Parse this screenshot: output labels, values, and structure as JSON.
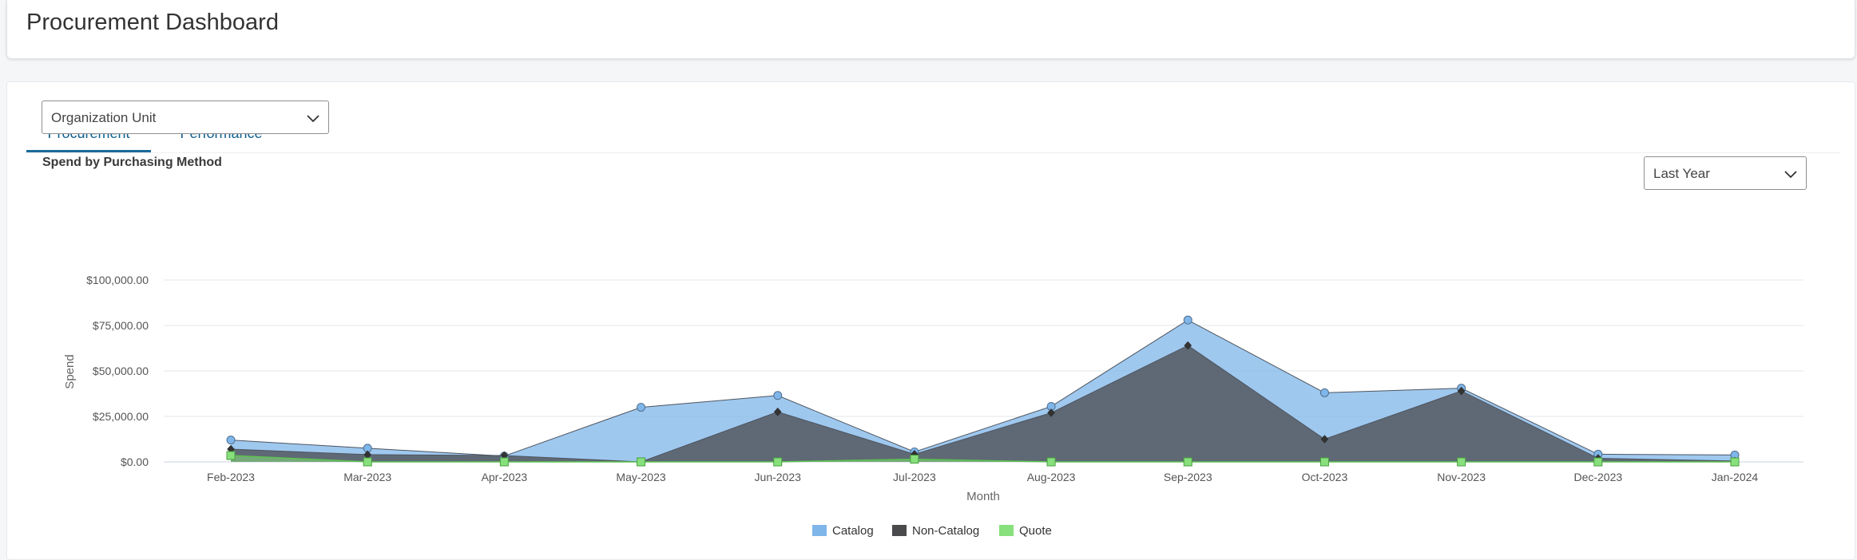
{
  "header": {
    "title": "Procurement Dashboard"
  },
  "tabs": [
    {
      "label": "Procurement",
      "active": true
    },
    {
      "label": "Performance",
      "active": false
    }
  ],
  "filters": {
    "org_unit": "Organization Unit",
    "period": "Last Year"
  },
  "icons": {
    "dropdown": "chevron-down-icon"
  },
  "colors": {
    "catalog": "#7fb6ea",
    "non_catalog": "#4a494c",
    "quote": "#87e07c",
    "tab_active": "#0f5f8f"
  },
  "chart_data": {
    "type": "area",
    "title": "Spend by Purchasing Method",
    "xlabel": "Month",
    "ylabel": "Spend",
    "ylim": [
      0,
      100000
    ],
    "y_ticks": [
      "$0.00",
      "$25,000.00",
      "$50,000.00",
      "$75,000.00",
      "$100,000.00"
    ],
    "categories": [
      "Feb-2023",
      "Mar-2023",
      "Apr-2023",
      "May-2023",
      "Jun-2023",
      "Jul-2023",
      "Aug-2023",
      "Sep-2023",
      "Oct-2023",
      "Nov-2023",
      "Dec-2023",
      "Jan-2024"
    ],
    "series": [
      {
        "name": "Catalog",
        "values": [
          12000,
          7500,
          3200,
          30000,
          36500,
          5500,
          30500,
          78000,
          38000,
          40500,
          4200,
          3800
        ]
      },
      {
        "name": "Non-Catalog",
        "values": [
          7000,
          4000,
          3500,
          0,
          27500,
          4200,
          27000,
          64000,
          12500,
          39000,
          2000,
          500
        ]
      },
      {
        "name": "Quote",
        "values": [
          3500,
          0,
          0,
          0,
          0,
          1500,
          0,
          0,
          0,
          0,
          0,
          0
        ]
      }
    ],
    "grid": true,
    "legend": "bottom-center"
  }
}
